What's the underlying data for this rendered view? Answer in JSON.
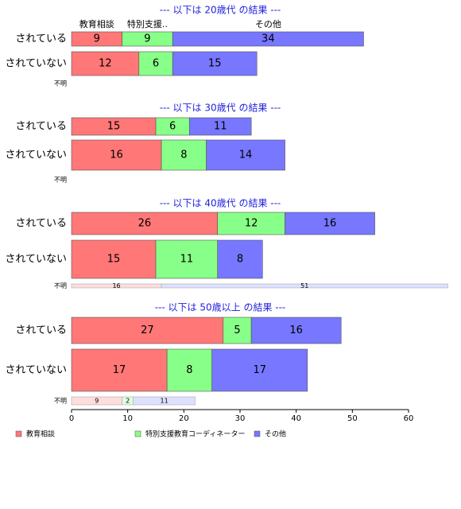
{
  "chart_data": {
    "type": "bar",
    "stacked": true,
    "orientation": "horizontal",
    "series": [
      {
        "name": "教育相談",
        "color": "#ff7777"
      },
      {
        "name": "特別支援教育コーディネーター",
        "color": "#88ff88"
      },
      {
        "name": "その他",
        "color": "#7777ff"
      }
    ],
    "column_labels": [
      "教育相談",
      "特別支援..",
      "その他"
    ],
    "panels": [
      {
        "title": "--- 以下は 20歳代 の結果 ---",
        "rows": [
          {
            "label": "されている",
            "values": [
              9,
              9,
              34
            ]
          },
          {
            "label": "されていない",
            "values": [
              12,
              6,
              15
            ]
          },
          {
            "label": "不明",
            "values": []
          }
        ]
      },
      {
        "title": "--- 以下は 30歳代 の結果 ---",
        "rows": [
          {
            "label": "されている",
            "values": [
              15,
              6,
              11
            ]
          },
          {
            "label": "されていない",
            "values": [
              16,
              8,
              14
            ]
          },
          {
            "label": "不明",
            "values": []
          }
        ]
      },
      {
        "title": "--- 以下は 40歳代 の結果 ---",
        "rows": [
          {
            "label": "されている",
            "values": [
              26,
              12,
              16
            ]
          },
          {
            "label": "されていない",
            "values": [
              15,
              11,
              8
            ]
          },
          {
            "label": "不明",
            "values": [
              16,
              0,
              51
            ]
          }
        ]
      },
      {
        "title": "--- 以下は 50歳以上 の結果 ---",
        "rows": [
          {
            "label": "されている",
            "values": [
              27,
              5,
              16
            ]
          },
          {
            "label": "されていない",
            "values": [
              17,
              8,
              17
            ]
          },
          {
            "label": "不明",
            "values": [
              9,
              2,
              11
            ]
          }
        ]
      }
    ],
    "xlim": [
      0,
      60
    ],
    "xticks": [
      0,
      10,
      20,
      30,
      40,
      50,
      60
    ]
  }
}
